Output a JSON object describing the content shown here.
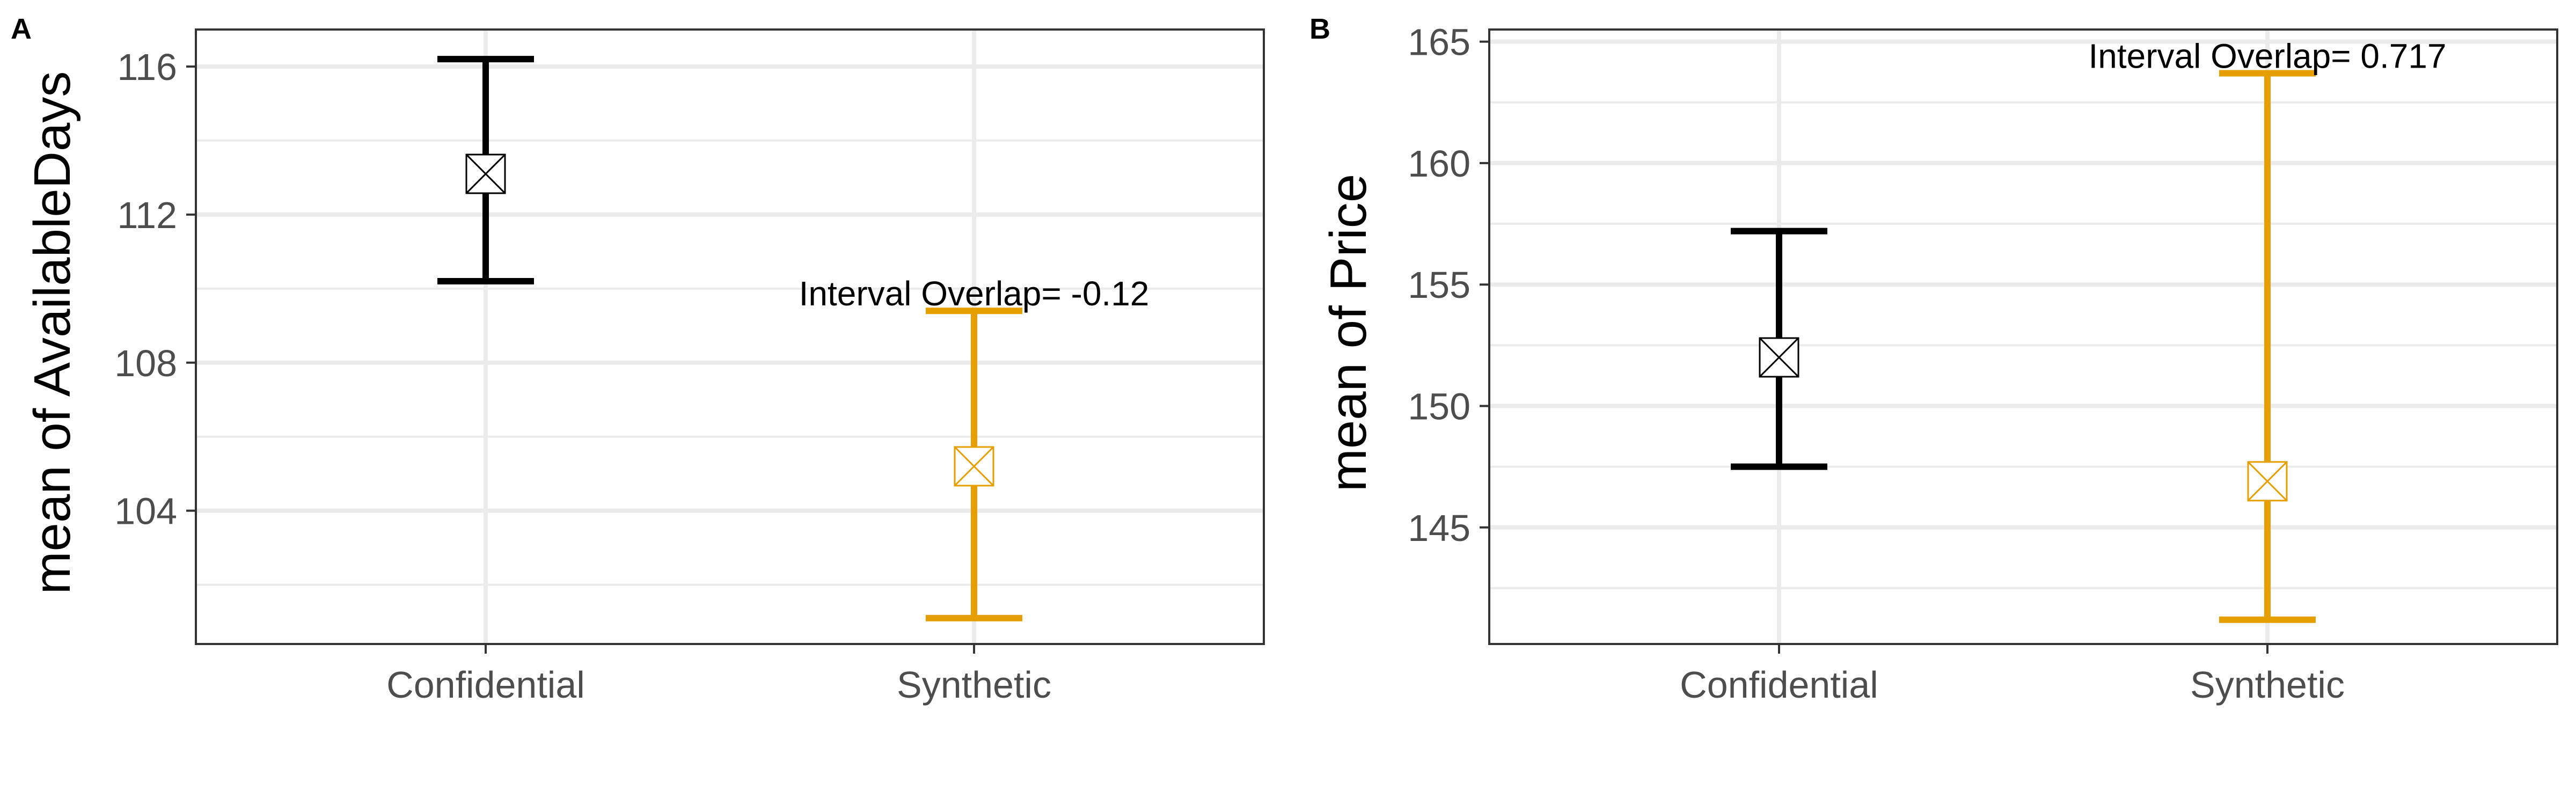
{
  "chart_data": [
    {
      "panel": "A",
      "type": "errorbar",
      "ylabel": "mean of AvailableDays",
      "categories": [
        "Confidential",
        "Synthetic"
      ],
      "ylim": [
        100.4,
        117.0
      ],
      "yticks": [
        104,
        108,
        112,
        116
      ],
      "yticks_labels": [
        "104",
        "108",
        "112",
        "116"
      ],
      "points": [
        {
          "category": "Confidential",
          "mean": 113.1,
          "low": 110.2,
          "high": 116.2,
          "color": "#000000"
        },
        {
          "category": "Synthetic",
          "mean": 105.2,
          "low": 101.1,
          "high": 109.4,
          "color": "#E69F00"
        }
      ],
      "annotation": {
        "text": "Interval Overlap= -0.12",
        "category": "Synthetic",
        "y": 109.4
      }
    },
    {
      "panel": "B",
      "type": "errorbar",
      "ylabel": "mean of Price",
      "categories": [
        "Confidential",
        "Synthetic"
      ],
      "ylim": [
        140.2,
        165.5
      ],
      "yticks": [
        145,
        150,
        155,
        160,
        165
      ],
      "yticks_labels": [
        "145",
        "150",
        "155",
        "160",
        "165"
      ],
      "points": [
        {
          "category": "Confidential",
          "mean": 152.0,
          "low": 147.5,
          "high": 157.2,
          "color": "#000000"
        },
        {
          "category": "Synthetic",
          "mean": 146.9,
          "low": 141.2,
          "high": 163.7,
          "color": "#E69F00"
        }
      ],
      "annotation": {
        "text": "Interval Overlap= 0.717",
        "category": "Synthetic",
        "y": 163.7
      }
    }
  ],
  "colors": {
    "confidential": "#000000",
    "synthetic": "#E69F00",
    "grid": "#ebebeb",
    "panel_border": "#333333"
  }
}
